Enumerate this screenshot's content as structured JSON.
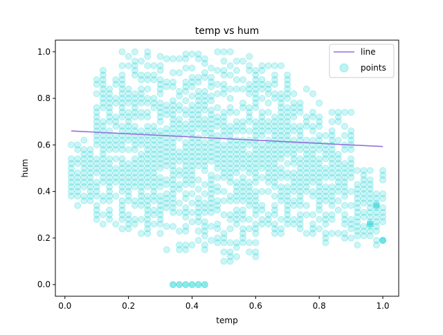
{
  "chart_data": {
    "type": "scatter",
    "title": "temp vs hum",
    "xlabel": "temp",
    "ylabel": "hum",
    "xlim": [
      -0.03,
      1.05
    ],
    "ylim": [
      -0.05,
      1.05
    ],
    "xticks": [
      0.0,
      0.2,
      0.4,
      0.6,
      0.8,
      1.0
    ],
    "yticks": [
      0.0,
      0.2,
      0.4,
      0.6,
      0.8,
      1.0
    ],
    "xtick_labels": [
      "0.0",
      "0.2",
      "0.4",
      "0.6",
      "0.8",
      "1.0"
    ],
    "ytick_labels": [
      "0.0",
      "0.2",
      "0.4",
      "0.6",
      "0.8",
      "1.0"
    ],
    "grid": false,
    "legend": {
      "placement": "top-right",
      "entries": [
        {
          "label": "line",
          "kind": "line",
          "color": "#9370db"
        },
        {
          "label": "points",
          "kind": "marker",
          "color": "#00ced1"
        }
      ]
    },
    "series": [
      {
        "name": "line",
        "type": "line",
        "color": "#9370db",
        "x": [
          0.02,
          1.0
        ],
        "y": [
          0.66,
          0.593
        ]
      },
      {
        "name": "points",
        "type": "scatter",
        "color": "#00ced1",
        "alpha": 0.2,
        "x_grid": [
          0.02,
          0.04,
          0.06,
          0.08,
          0.1,
          0.12,
          0.14,
          0.16,
          0.18,
          0.2,
          0.22,
          0.24,
          0.26,
          0.28,
          0.3,
          0.32,
          0.34,
          0.36,
          0.38,
          0.4,
          0.42,
          0.44,
          0.46,
          0.48,
          0.5,
          0.52,
          0.54,
          0.56,
          0.58,
          0.6,
          0.62,
          0.64,
          0.66,
          0.68,
          0.7,
          0.72,
          0.74,
          0.76,
          0.78,
          0.8,
          0.82,
          0.84,
          0.86,
          0.88,
          0.9,
          0.92,
          0.94,
          0.96,
          0.98,
          1.0
        ],
        "x_range": [
          0.02,
          1.0
        ],
        "y_range": [
          0.0,
          1.0
        ],
        "bands": [
          {
            "x_from": 0.02,
            "x_to": 0.08,
            "y_min": 0.34,
            "y_max": 0.62
          },
          {
            "x_from": 0.1,
            "x_to": 0.16,
            "y_min": 0.26,
            "y_max": 0.93
          },
          {
            "x_from": 0.18,
            "x_to": 0.3,
            "y_min": 0.22,
            "y_max": 1.0
          },
          {
            "x_from": 0.32,
            "x_to": 0.46,
            "y_min": 0.15,
            "y_max": 1.0
          },
          {
            "x_from": 0.48,
            "x_to": 0.6,
            "y_min": 0.1,
            "y_max": 1.0
          },
          {
            "x_from": 0.62,
            "x_to": 0.7,
            "y_min": 0.22,
            "y_max": 0.94
          },
          {
            "x_from": 0.72,
            "x_to": 0.8,
            "y_min": 0.22,
            "y_max": 0.84
          },
          {
            "x_from": 0.82,
            "x_to": 0.9,
            "y_min": 0.18,
            "y_max": 0.75
          },
          {
            "x_from": 0.92,
            "x_to": 1.0,
            "y_min": 0.17,
            "y_max": 0.5
          }
        ],
        "outliers": [
          {
            "x": 0.34,
            "y": 0.0
          },
          {
            "x": 0.36,
            "y": 0.0
          },
          {
            "x": 0.38,
            "y": 0.0
          },
          {
            "x": 0.4,
            "y": 0.0
          },
          {
            "x": 0.42,
            "y": 0.0
          },
          {
            "x": 0.44,
            "y": 0.0
          },
          {
            "x": 1.0,
            "y": 0.19
          },
          {
            "x": 0.98,
            "y": 0.34
          },
          {
            "x": 0.96,
            "y": 0.26
          }
        ]
      }
    ]
  }
}
